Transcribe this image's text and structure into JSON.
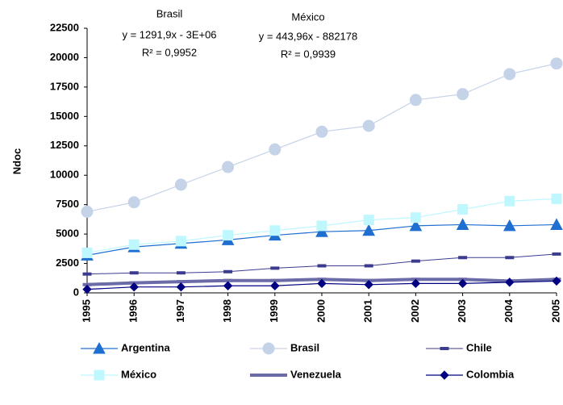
{
  "chart_data": {
    "type": "line",
    "y_label": "Ndoc",
    "categories": [
      "1995",
      "1996",
      "1997",
      "1998",
      "1999",
      "2000",
      "2001",
      "2002",
      "2003",
      "2004",
      "2005"
    ],
    "ylim": [
      0,
      22500
    ],
    "yticks": [
      0,
      2500,
      5000,
      7500,
      10000,
      12500,
      15000,
      17500,
      20000,
      22500
    ],
    "annotations": [
      "Brasil",
      "y = 1291,9x - 3E+06",
      "R² = 0,9952",
      "México",
      "y = 443,96x - 882178",
      "R² = 0,9939"
    ],
    "series": [
      {
        "name": "Argentina",
        "color": "#1f6fd1",
        "marker": "triangle",
        "line_width": 1.2,
        "values": [
          3200,
          3900,
          4200,
          4500,
          4900,
          5200,
          5300,
          5700,
          5800,
          5700,
          5800
        ]
      },
      {
        "name": "Brasil",
        "color": "#c5d3e8",
        "marker": "circle",
        "line_width": 1.2,
        "values": [
          6900,
          7700,
          9200,
          10700,
          12200,
          13700,
          14200,
          16400,
          16900,
          18600,
          19500
        ]
      },
      {
        "name": "Chile",
        "color": "#3b3b8f",
        "marker": "dash",
        "line_width": 1,
        "values": [
          1600,
          1700,
          1700,
          1800,
          2100,
          2300,
          2300,
          2700,
          3000,
          3000,
          3300
        ]
      },
      {
        "name": "México",
        "color": "#bff7ff",
        "marker": "square",
        "line_width": 1.2,
        "values": [
          3400,
          4100,
          4400,
          4900,
          5300,
          5700,
          6200,
          6400,
          7100,
          7800,
          8000
        ]
      },
      {
        "name": "Venezuela",
        "color": "#6b6ba8",
        "marker": "dash",
        "line_width": 4,
        "values": [
          700,
          850,
          950,
          1050,
          1050,
          1150,
          1050,
          1150,
          1150,
          1000,
          1150
        ]
      },
      {
        "name": "Colombia",
        "color": "#000080",
        "marker": "diamond",
        "line_width": 1.2,
        "values": [
          300,
          500,
          500,
          600,
          600,
          800,
          700,
          800,
          800,
          900,
          1000
        ]
      }
    ]
  }
}
